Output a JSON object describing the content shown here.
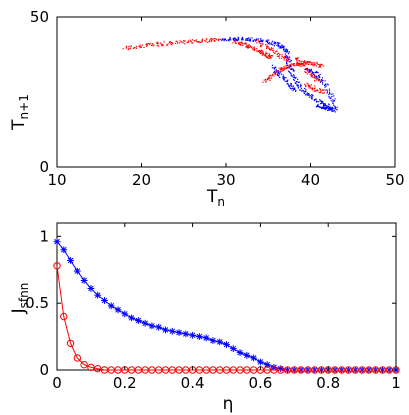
{
  "chart_data": [
    {
      "type": "scatter",
      "title": "",
      "xlabel": "T",
      "xlabel_sub": "n",
      "ylabel": "T",
      "ylabel_sub": "n+1",
      "xlim": [
        10,
        50
      ],
      "ylim": [
        0,
        50
      ],
      "xticks": [
        10,
        20,
        30,
        40,
        50
      ],
      "yticks": [
        0,
        50
      ],
      "grid": false,
      "legend": "none",
      "series": [
        {
          "color": "#ff0000",
          "segments": [
            {
              "x": [
                18,
                20,
                22,
                24,
                26,
                28,
                29.5
              ],
              "y": [
                39.5,
                40.3,
                40.9,
                41.4,
                41.8,
                42.2,
                42.5
              ]
            },
            {
              "x": [
                31,
                32,
                33,
                34,
                34.8,
                35.3
              ],
              "y": [
                42.0,
                41.0,
                40.0,
                38.5,
                37.2,
                36.5
              ]
            },
            {
              "x": [
                34.5,
                35.5,
                36.5,
                37.5,
                38.5,
                39.5,
                40.5,
                41.5
              ],
              "y": [
                28.5,
                30.5,
                32.5,
                33.5,
                34.5,
                34.8,
                34.3,
                33.5
              ]
            },
            {
              "x": [
                33.5,
                35,
                36.5,
                37.5
              ],
              "y": [
                42.0,
                39.5,
                37.0,
                35.5
              ]
            },
            {
              "x": [
                38.2,
                39.2,
                40.2,
                41.0
              ],
              "y": [
                36.5,
                33.5,
                30.5,
                28.5
              ]
            },
            {
              "x": [
                39.5,
                40.5,
                41.5
              ],
              "y": [
                27.5,
                26.0,
                25.0
              ]
            }
          ]
        },
        {
          "color": "#0000ff",
          "segments": [
            {
              "x": [
                29.5,
                31,
                32.5,
                34,
                35.5,
                36.5,
                37.2
              ],
              "y": [
                42.6,
                42.8,
                42.6,
                42.2,
                41.5,
                40.5,
                38.5
              ]
            },
            {
              "x": [
                37.2,
                37.5,
                38.0,
                38.8,
                39.8,
                40.8,
                41.8,
                42.5
              ],
              "y": [
                38.5,
                34.0,
                30.0,
                26.5,
                24.0,
                22.0,
                20.5,
                19.5
              ]
            },
            {
              "x": [
                35.5,
                36.5,
                37.5,
                38.2
              ],
              "y": [
                33.5,
                30.5,
                27.5,
                25.5
              ]
            },
            {
              "x": [
                39.5,
                40.5,
                41.5,
                42.5,
                43.0
              ],
              "y": [
                32.5,
                31.5,
                28.5,
                23.5,
                19.0
              ]
            },
            {
              "x": [
                40.8,
                41.8,
                42.8
              ],
              "y": [
                20.5,
                19.5,
                18.8
              ]
            }
          ]
        }
      ]
    },
    {
      "type": "line",
      "title": "",
      "xlabel": "η",
      "ylabel": "J",
      "ylabel_sub": "sfnn",
      "xlim": [
        0,
        1
      ],
      "ylim": [
        0,
        1.1
      ],
      "xticks": [
        0,
        0.2,
        0.4,
        0.6,
        0.8,
        1
      ],
      "xtick_labels": [
        "0",
        "0.2",
        "0.4",
        "0.6",
        "0.8",
        "1"
      ],
      "yticks": [
        0,
        0.5,
        1
      ],
      "ytick_labels": [
        "0",
        "0.5",
        "1"
      ],
      "grid": false,
      "legend": "none",
      "x": [
        0,
        0.02,
        0.04,
        0.06,
        0.08,
        0.1,
        0.12,
        0.14,
        0.16,
        0.18,
        0.2,
        0.22,
        0.24,
        0.26,
        0.28,
        0.3,
        0.32,
        0.34,
        0.36,
        0.38,
        0.4,
        0.42,
        0.44,
        0.46,
        0.48,
        0.5,
        0.52,
        0.54,
        0.56,
        0.58,
        0.6,
        0.62,
        0.64,
        0.66,
        0.68,
        0.7,
        0.72,
        0.74,
        0.76,
        0.78,
        0.8,
        0.82,
        0.84,
        0.86,
        0.88,
        0.9,
        0.92,
        0.94,
        0.96,
        0.98,
        1.0
      ],
      "series": [
        {
          "color": "#0000ff",
          "marker": "star",
          "values": [
            0.96,
            0.9,
            0.82,
            0.74,
            0.67,
            0.61,
            0.56,
            0.52,
            0.48,
            0.45,
            0.42,
            0.39,
            0.37,
            0.35,
            0.33,
            0.32,
            0.3,
            0.29,
            0.28,
            0.27,
            0.26,
            0.25,
            0.24,
            0.22,
            0.21,
            0.19,
            0.16,
            0.13,
            0.11,
            0.09,
            0.06,
            0.04,
            0.02,
            0.01,
            0,
            0,
            0,
            0,
            0,
            0,
            0,
            0,
            0,
            0,
            0,
            0,
            0,
            0,
            0,
            0,
            0
          ]
        },
        {
          "color": "#ff0000",
          "marker": "circle",
          "values": [
            0.78,
            0.4,
            0.2,
            0.09,
            0.04,
            0.02,
            0.01,
            0,
            0,
            0,
            0,
            0,
            0,
            0,
            0,
            0,
            0,
            0,
            0,
            0,
            0,
            0,
            0,
            0,
            0,
            0,
            0,
            0,
            0,
            0,
            0,
            0,
            0,
            0,
            0,
            0,
            0,
            0,
            0,
            0,
            0,
            0,
            0,
            0,
            0,
            0,
            0,
            0,
            0,
            0,
            0
          ]
        }
      ]
    }
  ]
}
